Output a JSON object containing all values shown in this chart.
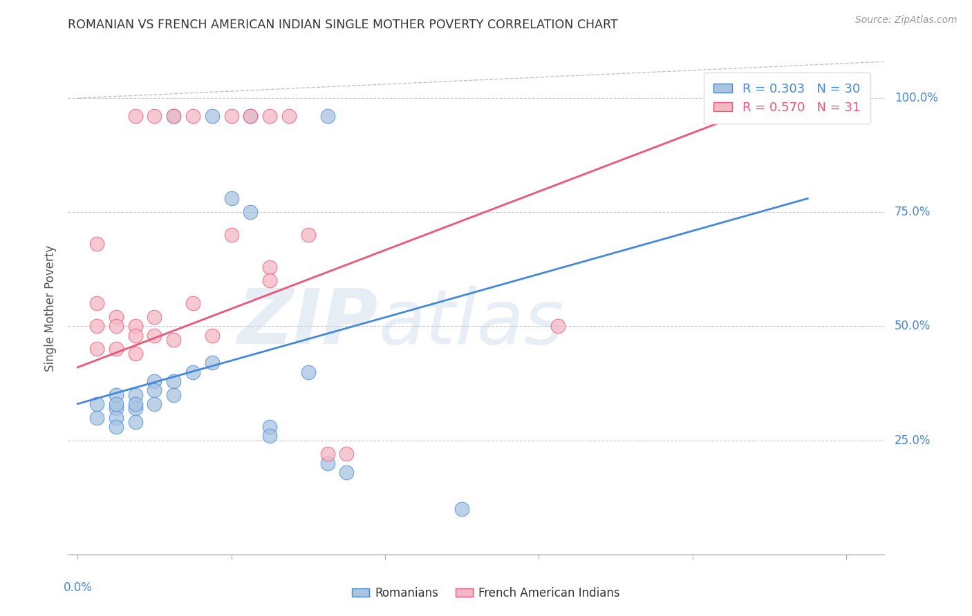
{
  "title": "ROMANIAN VS FRENCH AMERICAN INDIAN SINGLE MOTHER POVERTY CORRELATION CHART",
  "source": "Source: ZipAtlas.com",
  "ylabel": "Single Mother Poverty",
  "xlim": [
    0.0,
    0.4
  ],
  "ylim": [
    0.0,
    1.08
  ],
  "watermark": "ZIPatlas",
  "legend_romanian": {
    "R": 0.303,
    "N": 30
  },
  "legend_french": {
    "R": 0.57,
    "N": 31
  },
  "bg_color": "#ffffff",
  "scatter_blue": "#a8c4e0",
  "scatter_pink": "#f4b8c4",
  "line_blue": "#4488dd",
  "line_pink": "#ee5577",
  "grid_color": "#bbbbbb",
  "text_color": "#4488dd",
  "title_color": "#333333",
  "romanian_x": [
    0.01,
    0.01,
    0.02,
    0.02,
    0.02,
    0.02,
    0.02,
    0.03,
    0.03,
    0.03,
    0.03,
    0.04,
    0.04,
    0.04,
    0.05,
    0.05,
    0.06,
    0.07,
    0.08,
    0.09,
    0.1,
    0.1,
    0.12,
    0.13,
    0.14,
    0.2,
    0.05,
    0.07,
    0.09,
    0.13
  ],
  "romanian_y": [
    0.33,
    0.3,
    0.35,
    0.32,
    0.3,
    0.33,
    0.28,
    0.35,
    0.32,
    0.29,
    0.33,
    0.38,
    0.36,
    0.33,
    0.38,
    0.35,
    0.4,
    0.42,
    0.78,
    0.75,
    0.28,
    0.26,
    0.4,
    0.2,
    0.18,
    0.1,
    0.96,
    0.96,
    0.96,
    0.96
  ],
  "french_x": [
    0.01,
    0.01,
    0.01,
    0.01,
    0.02,
    0.02,
    0.02,
    0.03,
    0.03,
    0.03,
    0.04,
    0.04,
    0.05,
    0.06,
    0.07,
    0.08,
    0.1,
    0.1,
    0.12,
    0.13,
    0.14,
    0.25,
    0.38,
    0.03,
    0.04,
    0.05,
    0.06,
    0.08,
    0.09,
    0.1,
    0.11
  ],
  "french_y": [
    0.68,
    0.55,
    0.5,
    0.45,
    0.52,
    0.5,
    0.45,
    0.5,
    0.48,
    0.44,
    0.52,
    0.48,
    0.47,
    0.55,
    0.48,
    0.7,
    0.63,
    0.6,
    0.7,
    0.22,
    0.22,
    0.5,
    1.0,
    0.96,
    0.96,
    0.96,
    0.96,
    0.96,
    0.96,
    0.96,
    0.96
  ],
  "rom_line_x": [
    0.0,
    0.38
  ],
  "rom_line_y": [
    0.33,
    0.78
  ],
  "fai_line_x": [
    0.0,
    0.38
  ],
  "fai_line_y": [
    0.41,
    1.02
  ],
  "dashed_line_x": [
    0.0,
    0.4
  ],
  "dashed_line_y": [
    1.0,
    1.0
  ],
  "yticks": [
    0.25,
    0.5,
    0.75,
    1.0
  ],
  "ytick_labels": [
    "25.0%",
    "50.0%",
    "75.0%",
    "100.0%"
  ]
}
